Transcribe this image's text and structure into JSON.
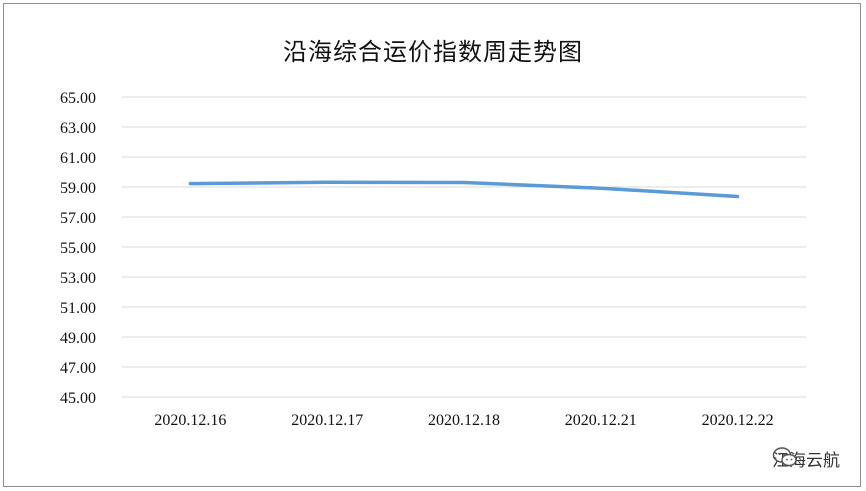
{
  "chart_data": {
    "type": "line",
    "title": "沿海综合运价指数周走势图",
    "categories": [
      "2020.12.16",
      "2020.12.17",
      "2020.12.18",
      "2020.12.21",
      "2020.12.22"
    ],
    "series": [
      {
        "values": [
          59.23,
          59.31,
          59.3,
          58.92,
          58.37
        ],
        "color": "#5b9bd5"
      }
    ],
    "ylim": [
      45.0,
      65.0
    ],
    "yticks": [
      "65.00",
      "63.00",
      "61.00",
      "59.00",
      "57.00",
      "55.00",
      "53.00",
      "51.00",
      "49.00",
      "47.00",
      "45.00"
    ],
    "grid": true,
    "legend": "none"
  },
  "watermark": {
    "text": "江海云航",
    "icon": "wechat-icon"
  }
}
